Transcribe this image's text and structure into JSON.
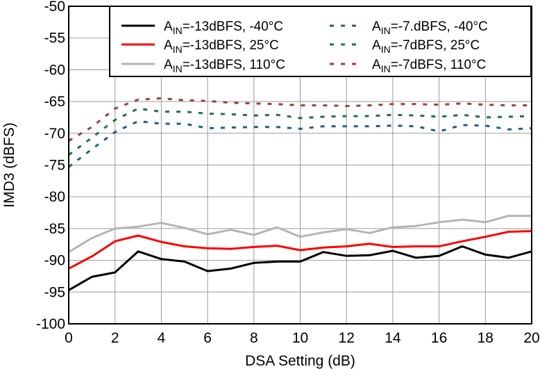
{
  "chart_data": {
    "type": "line",
    "title": "",
    "xlabel": "DSA Setting (dB)",
    "ylabel": "IMD3 (dBFS)",
    "xlim": [
      0,
      20
    ],
    "ylim": [
      -100,
      -50
    ],
    "xticks": [
      0,
      2,
      4,
      6,
      8,
      10,
      12,
      14,
      16,
      18,
      20
    ],
    "yticks": [
      -50,
      -55,
      -60,
      -65,
      -70,
      -75,
      -80,
      -85,
      -90,
      -95,
      -100
    ],
    "grid": true,
    "legend_position": "top-right",
    "x": [
      0,
      1,
      2,
      3,
      4,
      5,
      6,
      7,
      8,
      9,
      10,
      11,
      12,
      13,
      14,
      15,
      16,
      17,
      18,
      19,
      20
    ],
    "series": [
      {
        "name": "AIN=-13dBFS, -40°C",
        "legend": {
          "pre": "A",
          "sub": "IN",
          "post": "=-13dBFS, -40°C"
        },
        "color": "#000000",
        "style": "solid",
        "values": [
          -94.7,
          -92.6,
          -91.9,
          -88.6,
          -89.8,
          -90.2,
          -91.7,
          -91.3,
          -90.4,
          -90.2,
          -90.2,
          -88.7,
          -89.3,
          -89.2,
          -88.5,
          -89.6,
          -89.3,
          -87.8,
          -89.1,
          -89.6,
          -88.6
        ]
      },
      {
        "name": "AIN=-13dBFS, 25°C",
        "legend": {
          "pre": "A",
          "sub": "IN",
          "post": "=-13dBFS, 25°C"
        },
        "color": "#ff0000",
        "style": "solid",
        "values": [
          -91.3,
          -89.4,
          -87.0,
          -86.1,
          -87.1,
          -87.8,
          -88.1,
          -88.2,
          -87.9,
          -87.7,
          -88.4,
          -88.0,
          -87.8,
          -87.4,
          -87.9,
          -87.8,
          -87.8,
          -87.0,
          -86.3,
          -85.5,
          -85.4
        ]
      },
      {
        "name": "AIN=-13dBFS, 110°C",
        "legend": {
          "pre": "A",
          "sub": "IN",
          "post": "=-13dBFS, 110°C"
        },
        "color": "#b4b4b4",
        "style": "solid",
        "values": [
          -88.7,
          -86.5,
          -85.0,
          -84.7,
          -84.1,
          -84.9,
          -85.9,
          -85.2,
          -86.0,
          -84.8,
          -86.3,
          -85.6,
          -85.1,
          -85.7,
          -84.8,
          -84.6,
          -84.0,
          -83.6,
          -84.0,
          -83.0,
          -83.0
        ]
      },
      {
        "name": "AIN=-7.dBFS, -40°C",
        "legend": {
          "pre": "A",
          "sub": "IN",
          "post": "=-7.dBFS, -40°C"
        },
        "color": "#1f5f7f",
        "style": "dotted",
        "values": [
          -75.3,
          -72.5,
          -69.8,
          -68.1,
          -68.5,
          -68.5,
          -69.2,
          -69.1,
          -69.0,
          -69.0,
          -69.3,
          -68.9,
          -68.9,
          -68.9,
          -68.8,
          -68.9,
          -69.7,
          -68.7,
          -68.8,
          -69.4,
          -69.2
        ]
      },
      {
        "name": "AIN=-7dBFS, 25°C",
        "legend": {
          "pre": "A",
          "sub": "IN",
          "post": "=-7dBFS, 25°C"
        },
        "color": "#1f6f4a",
        "style": "dotted",
        "values": [
          -73.4,
          -70.7,
          -67.9,
          -66.1,
          -66.6,
          -66.6,
          -66.9,
          -67.0,
          -67.2,
          -67.1,
          -67.6,
          -67.4,
          -67.3,
          -67.3,
          -67.1,
          -67.2,
          -67.4,
          -67.1,
          -67.5,
          -67.4,
          -67.3
        ]
      },
      {
        "name": "AIN=-7dBFS, 110°C",
        "legend": {
          "pre": "A",
          "sub": "IN",
          "post": "=-7dBFS, 110°C"
        },
        "color": "#a33a3a",
        "style": "dotted",
        "values": [
          -71.2,
          -69.0,
          -66.1,
          -64.7,
          -64.5,
          -64.8,
          -64.9,
          -65.2,
          -65.3,
          -65.4,
          -65.6,
          -65.6,
          -65.7,
          -65.6,
          -65.4,
          -65.4,
          -65.5,
          -65.3,
          -65.5,
          -65.6,
          -65.6
        ]
      }
    ]
  }
}
